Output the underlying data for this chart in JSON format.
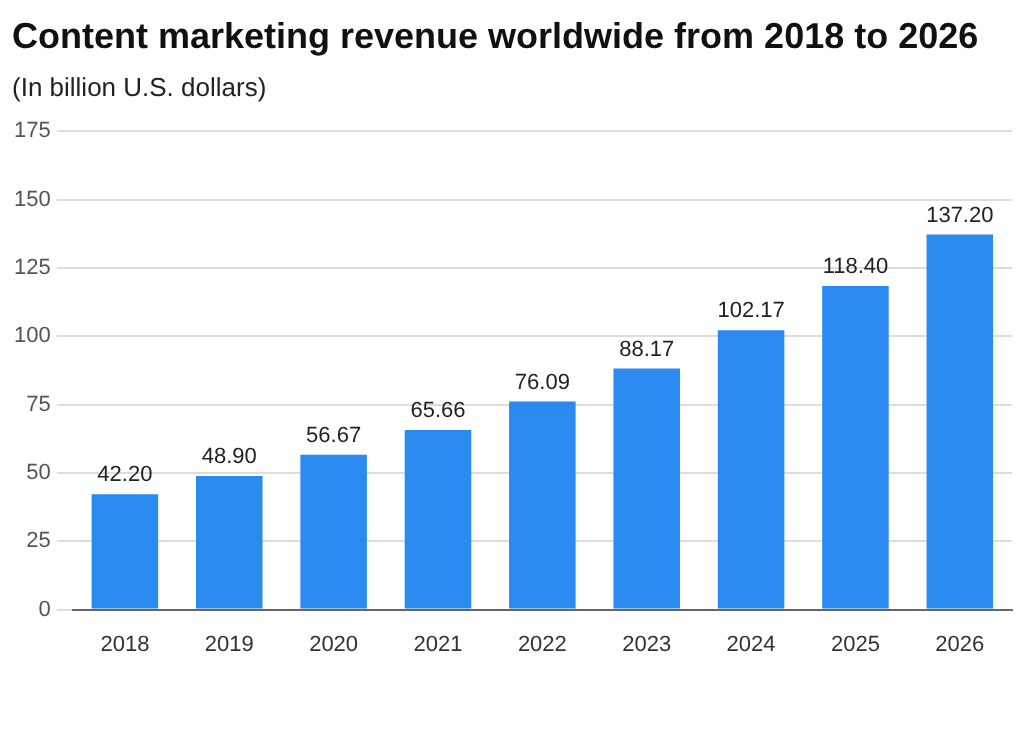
{
  "chart_data": {
    "type": "bar",
    "title": "Content marketing revenue worldwide from 2018 to 2026",
    "subtitle": "(In billion U.S. dollars)",
    "categories": [
      "2018",
      "2019",
      "2020",
      "2021",
      "2022",
      "2023",
      "2024",
      "2025",
      "2026"
    ],
    "values": [
      42.2,
      48.9,
      56.67,
      65.66,
      76.09,
      88.17,
      102.17,
      118.4,
      137.2
    ],
    "value_labels": [
      "42.20",
      "48.90",
      "56.67",
      "65.66",
      "76.09",
      "88.17",
      "102.17",
      "118.40",
      "137.20"
    ],
    "color": "#2a8af0",
    "ylim": [
      0,
      175
    ],
    "yticks": [
      0,
      25,
      50,
      75,
      100,
      125,
      150,
      175
    ],
    "grid": "y",
    "legend": false
  }
}
